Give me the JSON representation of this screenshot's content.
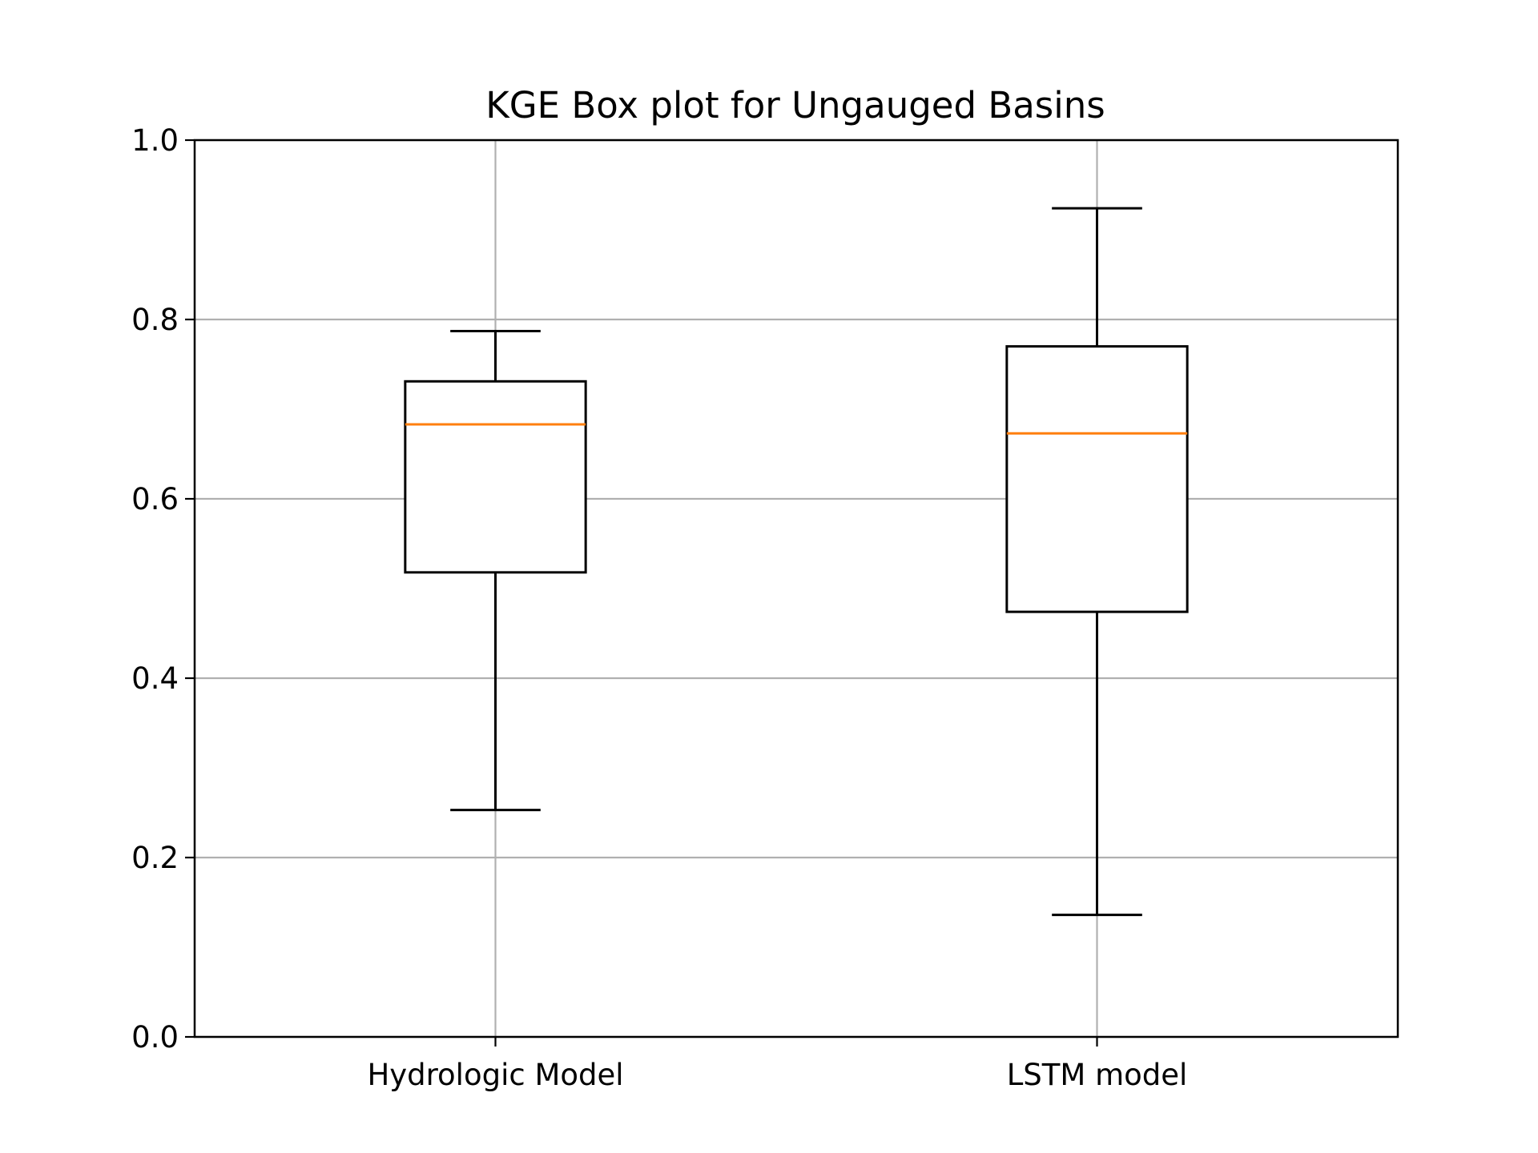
{
  "chart_data": {
    "type": "box",
    "title": "KGE Box plot for Ungauged Basins",
    "xlabel": "",
    "ylabel": "",
    "ylim": [
      0.0,
      1.0
    ],
    "yticks": [
      "0.0",
      "0.2",
      "0.4",
      "0.6",
      "0.8",
      "1.0"
    ],
    "grid": true,
    "categories": [
      "Hydrologic Model",
      "LSTM model"
    ],
    "boxes": [
      {
        "category": "Hydrologic Model",
        "whisker_low": 0.253,
        "q1": 0.518,
        "median": 0.683,
        "q3": 0.731,
        "whisker_high": 0.787
      },
      {
        "category": "LSTM model",
        "whisker_low": 0.136,
        "q1": 0.474,
        "median": 0.673,
        "q3": 0.77,
        "whisker_high": 0.924
      }
    ],
    "colors": {
      "median": "#ff7f0e",
      "box": "#000000",
      "grid": "#b0b0b0"
    }
  }
}
